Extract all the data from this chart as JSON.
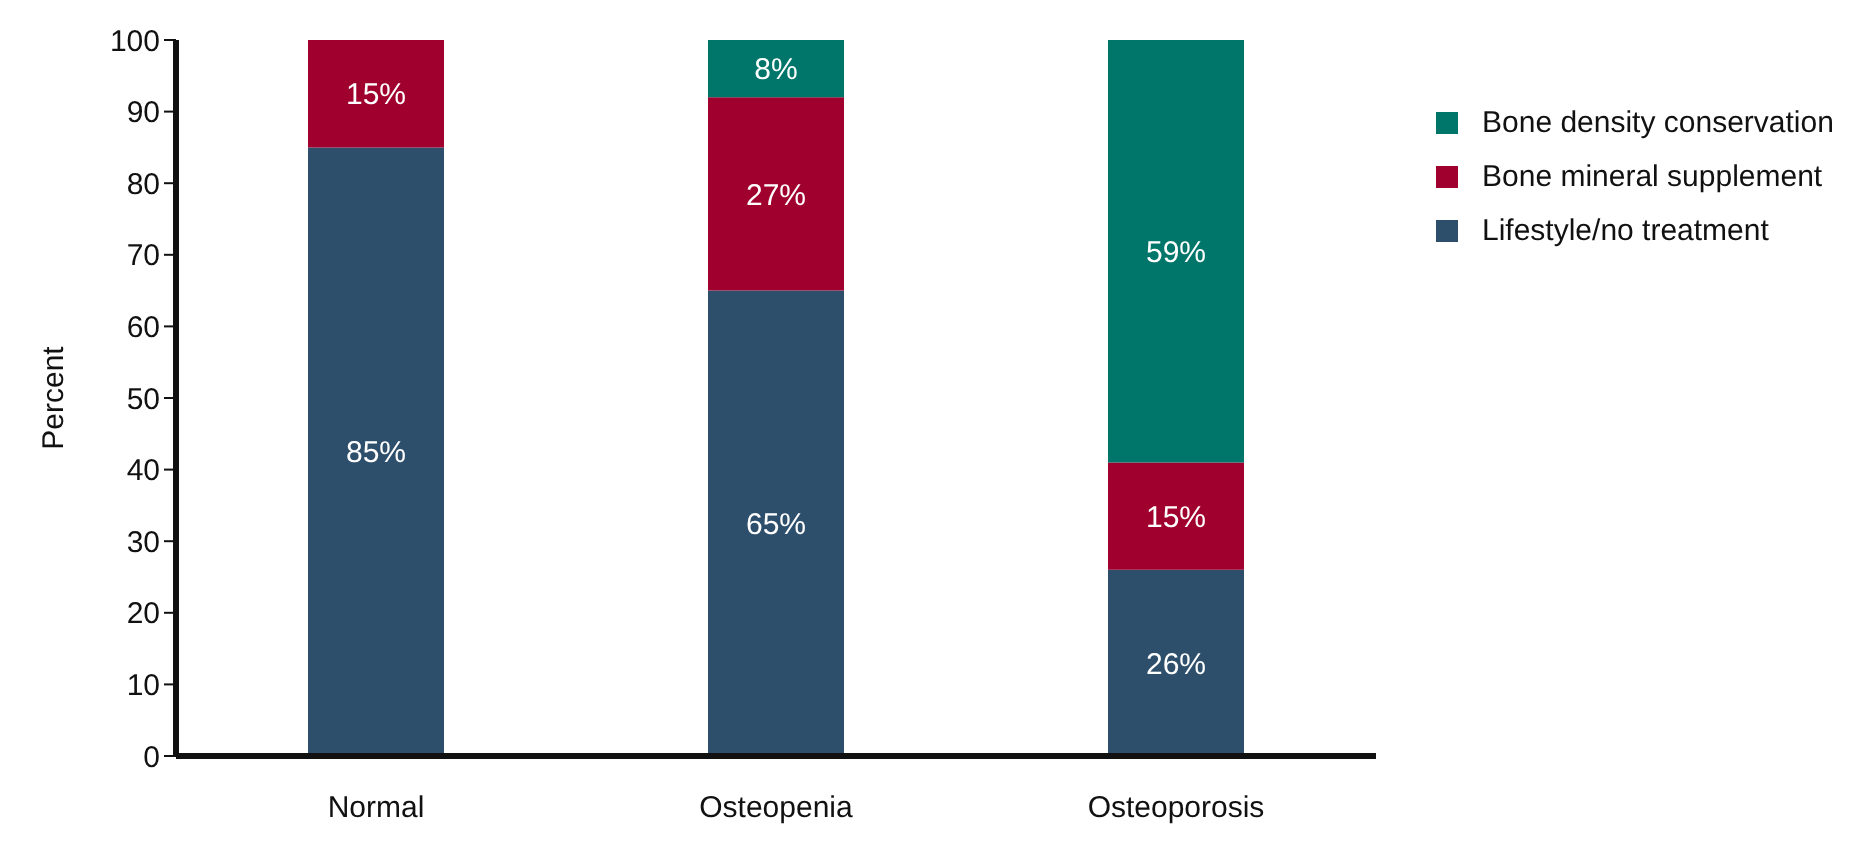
{
  "chart_data": {
    "type": "bar",
    "stacked": true,
    "ylabel": "Percent",
    "categories": [
      "Normal",
      "Osteopenia",
      "Osteoporosis"
    ],
    "series": [
      {
        "name": "Lifestyle/no treatment",
        "color": "#2e4f6b",
        "values": [
          85,
          65,
          26
        ],
        "value_labels": [
          "85%",
          "65%",
          "26%"
        ]
      },
      {
        "name": "Bone mineral supplement",
        "color": "#a0002e",
        "values": [
          15,
          27,
          15
        ],
        "value_labels": [
          "15%",
          "27%",
          "15%"
        ]
      },
      {
        "name": "Bone density conservation",
        "color": "#00756a",
        "values": [
          0,
          8,
          59
        ],
        "value_labels": [
          null,
          "8%",
          "59%"
        ]
      }
    ],
    "ylim": [
      0,
      100
    ],
    "yticks": [
      0,
      10,
      20,
      30,
      40,
      50,
      60,
      70,
      80,
      90,
      100
    ],
    "grid": false,
    "legend": "right"
  }
}
